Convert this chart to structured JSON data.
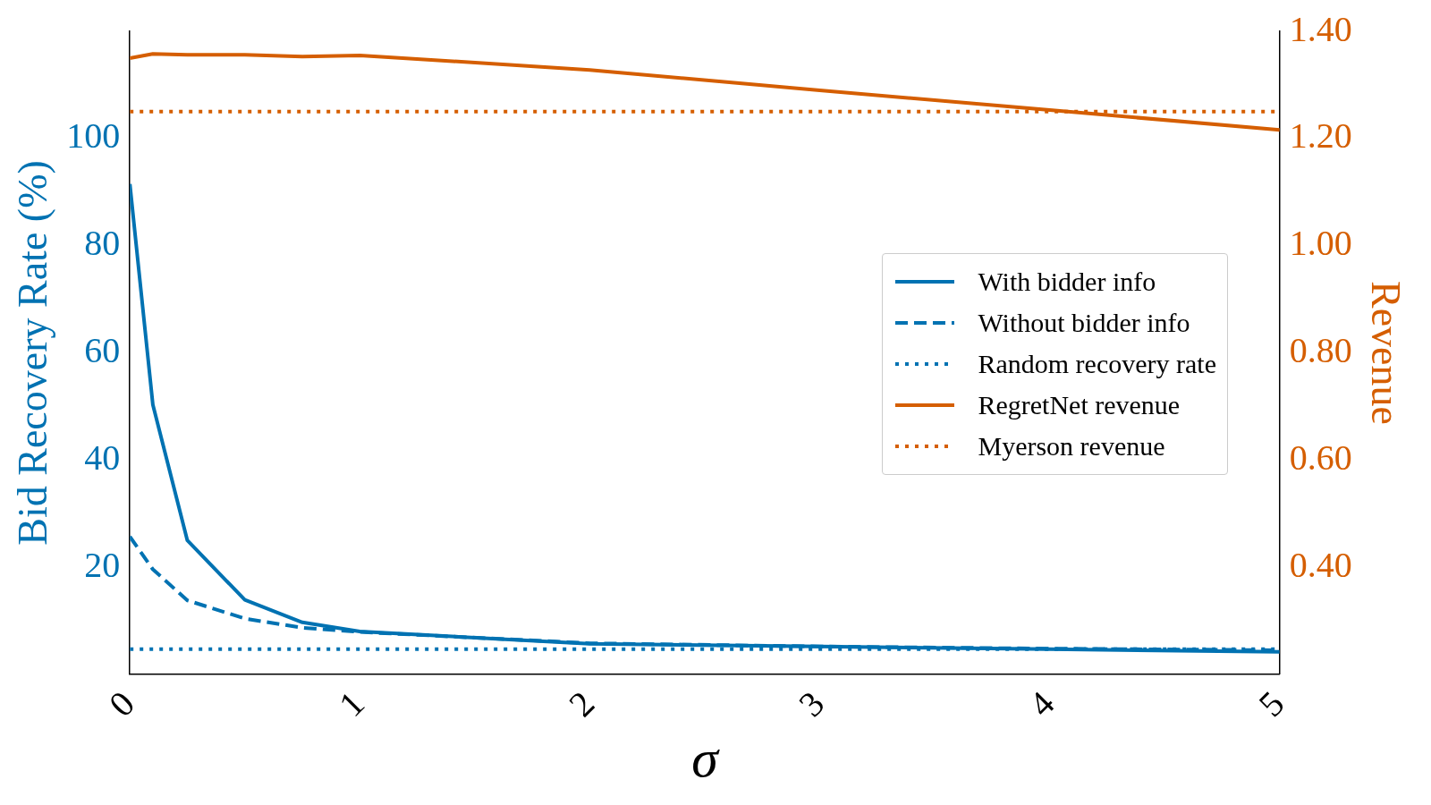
{
  "chart_data": {
    "type": "line",
    "xlabel": "σ",
    "ylabel": "Bid Recovery Rate (%)",
    "y2label": "Revenue",
    "xlim": [
      0,
      5
    ],
    "xticks": [
      0,
      1,
      2,
      3,
      4,
      5
    ],
    "ylim": [
      0,
      120
    ],
    "yticks": [
      20,
      40,
      60,
      80,
      100
    ],
    "y2lim": [
      0.2,
      1.4
    ],
    "y2ticks": [
      {
        "value": 0.4,
        "label": "0.40"
      },
      {
        "value": 0.6,
        "label": "0.60"
      },
      {
        "value": 0.8,
        "label": "0.80"
      },
      {
        "value": 1.0,
        "label": "1.00"
      },
      {
        "value": 1.2,
        "label": "1.20"
      },
      {
        "value": 1.4,
        "label": "1.40"
      }
    ],
    "grid": false,
    "legend": "right",
    "marker": "none",
    "series": [
      {
        "name": "With bidder info",
        "color": "#0072b2",
        "line_style": "solid",
        "x": [
          0,
          0.1,
          0.25,
          0.5,
          0.75,
          1,
          2,
          3,
          4,
          5
        ],
        "values": [
          91.5,
          50.3,
          25,
          13.9,
          9.7,
          8.0,
          5.7,
          5.2,
          4.7,
          4.2
        ]
      },
      {
        "name": "Without bidder info",
        "color": "#0072b2",
        "line_style": "dashed",
        "x": [
          0,
          0.1,
          0.25,
          0.5,
          0.75,
          1,
          2,
          3,
          4,
          5
        ],
        "values": [
          25.7,
          19.6,
          13.8,
          10.4,
          8.7,
          7.9,
          5.8,
          5.2,
          4.8,
          4.5
        ]
      },
      {
        "name": "Random recovery rate",
        "color": "#0072b2",
        "line_style": "dotted",
        "x": [
          0,
          5
        ],
        "values": [
          4.7,
          4.7
        ]
      },
      {
        "name": "RegretNet revenue",
        "color": "#d55e00",
        "line_style": "solid",
        "axis": "y2",
        "x": [
          0,
          0.1,
          0.25,
          0.5,
          0.75,
          1,
          2,
          3,
          4,
          5
        ],
        "values": [
          1.35,
          1.358,
          1.356,
          1.356,
          1.353,
          1.355,
          1.328,
          1.29,
          1.253,
          1.216
        ]
      },
      {
        "name": "Myerson revenue",
        "color": "#d55e00",
        "line_style": "dotted",
        "axis": "y2",
        "x": [
          0,
          5
        ],
        "values": [
          1.25,
          1.25
        ]
      }
    ]
  }
}
